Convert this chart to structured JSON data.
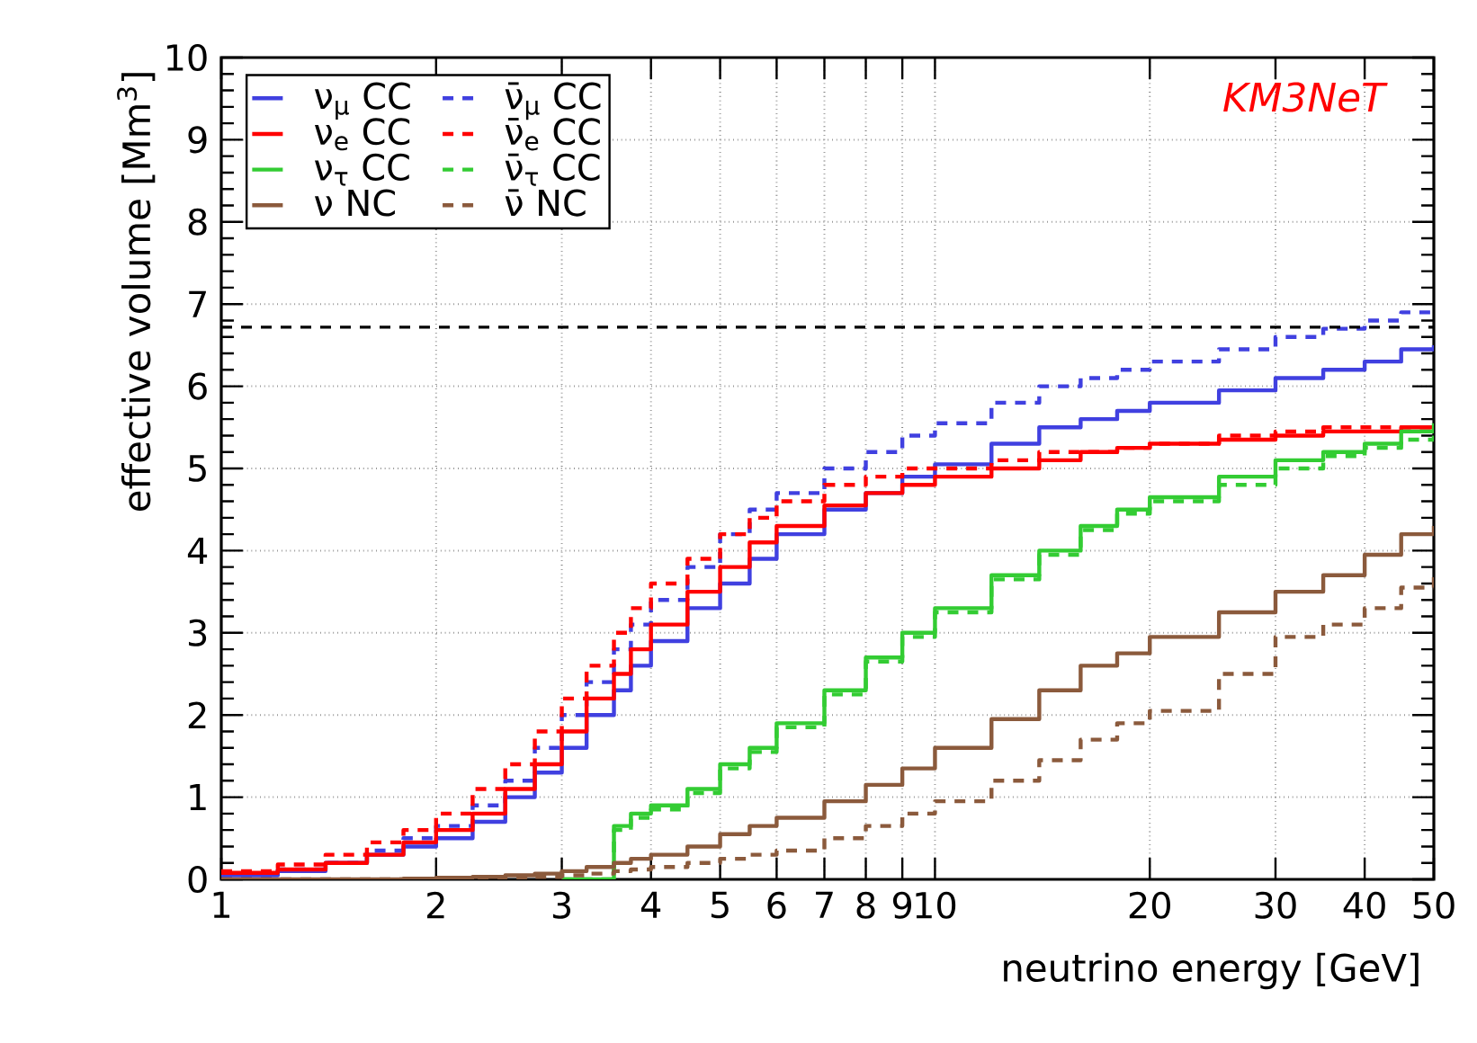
{
  "chart_data": {
    "type": "step",
    "xlabel": "neutrino energy [GeV]",
    "ylabel": "effective volume [Mm$^{3}$]",
    "log": "x",
    "xlim": [
      1,
      50
    ],
    "ylim": [
      0,
      10
    ],
    "xticks": [
      1,
      2,
      3,
      4,
      5,
      6,
      7,
      8,
      9,
      10,
      20,
      30,
      40,
      50
    ],
    "yticks": [
      0,
      1,
      2,
      3,
      4,
      5,
      6,
      7,
      8,
      9,
      10
    ],
    "grid": true,
    "legend": "top left",
    "marker": "none",
    "ref_lines": [
      {
        "axis": "y",
        "value": 6.72,
        "line_style": "dashed",
        "color": "#000000"
      }
    ],
    "annotations": [
      "KM3NeT"
    ],
    "x": [
      1,
      1.2,
      1.4,
      1.6,
      1.8,
      2,
      2.25,
      2.5,
      2.75,
      3,
      3.25,
      3.55,
      3.75,
      4,
      4.5,
      5,
      5.5,
      6,
      7,
      8,
      9,
      10,
      12,
      14,
      16,
      18,
      20,
      25,
      30,
      35,
      40,
      45,
      50
    ],
    "series": [
      {
        "name": "ν$_{μ}$ CC",
        "color": "#4040e0",
        "line_style": "solid",
        "values": [
          0.05,
          0.1,
          0.2,
          0.3,
          0.4,
          0.5,
          0.7,
          1.0,
          1.3,
          1.6,
          2.0,
          2.3,
          2.6,
          2.9,
          3.3,
          3.6,
          3.9,
          4.2,
          4.5,
          4.7,
          4.9,
          5.05,
          5.3,
          5.5,
          5.6,
          5.7,
          5.8,
          5.95,
          6.1,
          6.2,
          6.3,
          6.45,
          6.5
        ]
      },
      {
        "name": "ν̄$_{μ}$ CC",
        "color": "#4040e0",
        "line_style": "dashed",
        "values": [
          0.05,
          0.12,
          0.2,
          0.35,
          0.5,
          0.65,
          0.9,
          1.2,
          1.6,
          2.0,
          2.4,
          2.8,
          3.1,
          3.4,
          3.8,
          4.2,
          4.5,
          4.7,
          5.0,
          5.2,
          5.4,
          5.55,
          5.8,
          6.0,
          6.1,
          6.2,
          6.3,
          6.45,
          6.6,
          6.7,
          6.8,
          6.9,
          6.95
        ]
      },
      {
        "name": "ν$_{e}$ CC",
        "color": "#ff0000",
        "line_style": "solid",
        "values": [
          0.08,
          0.12,
          0.2,
          0.3,
          0.45,
          0.6,
          0.8,
          1.1,
          1.4,
          1.8,
          2.2,
          2.5,
          2.8,
          3.1,
          3.5,
          3.8,
          4.1,
          4.3,
          4.55,
          4.7,
          4.8,
          4.9,
          5.0,
          5.1,
          5.2,
          5.25,
          5.3,
          5.35,
          5.4,
          5.45,
          5.45,
          5.5,
          5.5
        ]
      },
      {
        "name": "ν̄$_{e}$ CC",
        "color": "#ff0000",
        "line_style": "dashed",
        "values": [
          0.1,
          0.18,
          0.3,
          0.45,
          0.6,
          0.8,
          1.1,
          1.4,
          1.8,
          2.2,
          2.6,
          3.0,
          3.3,
          3.6,
          3.9,
          4.2,
          4.4,
          4.6,
          4.8,
          4.9,
          5.0,
          5.0,
          5.1,
          5.2,
          5.2,
          5.25,
          5.3,
          5.4,
          5.45,
          5.5,
          5.5,
          5.5,
          5.55
        ]
      },
      {
        "name": "ν$_{τ}$ CC",
        "color": "#33cc33",
        "line_style": "solid",
        "values": [
          null,
          null,
          null,
          null,
          null,
          null,
          null,
          null,
          null,
          0,
          0,
          0.65,
          0.8,
          0.9,
          1.1,
          1.4,
          1.6,
          1.9,
          2.3,
          2.7,
          3.0,
          3.3,
          3.7,
          4.0,
          4.3,
          4.5,
          4.65,
          4.9,
          5.1,
          5.2,
          5.3,
          5.45,
          5.55
        ]
      },
      {
        "name": "ν̄$_{τ}$ CC",
        "color": "#33cc33",
        "line_style": "dashed",
        "values": [
          null,
          null,
          null,
          null,
          null,
          null,
          null,
          null,
          null,
          0,
          0,
          0.6,
          0.75,
          0.85,
          1.05,
          1.35,
          1.55,
          1.85,
          2.25,
          2.65,
          2.95,
          3.25,
          3.65,
          3.95,
          4.25,
          4.45,
          4.6,
          4.8,
          5.0,
          5.15,
          5.25,
          5.35,
          5.4
        ]
      },
      {
        "name": "ν NC",
        "color": "#8b5a3c",
        "line_style": "solid",
        "values": [
          0,
          0,
          0,
          0,
          0.01,
          0.02,
          0.03,
          0.05,
          0.07,
          0.1,
          0.15,
          0.2,
          0.25,
          0.3,
          0.4,
          0.55,
          0.65,
          0.75,
          0.95,
          1.15,
          1.35,
          1.6,
          1.95,
          2.3,
          2.6,
          2.75,
          2.95,
          3.25,
          3.5,
          3.7,
          3.95,
          4.2,
          4.3
        ]
      },
      {
        "name": "ν̄ NC",
        "color": "#8b5a3c",
        "line_style": "dashed",
        "values": [
          0,
          0,
          0,
          0,
          0,
          0,
          0.01,
          0.02,
          0.03,
          0.05,
          0.07,
          0.1,
          0.12,
          0.15,
          0.2,
          0.25,
          0.3,
          0.35,
          0.5,
          0.65,
          0.8,
          0.95,
          1.2,
          1.45,
          1.7,
          1.9,
          2.05,
          2.5,
          2.95,
          3.1,
          3.3,
          3.55,
          3.7
        ]
      }
    ]
  }
}
